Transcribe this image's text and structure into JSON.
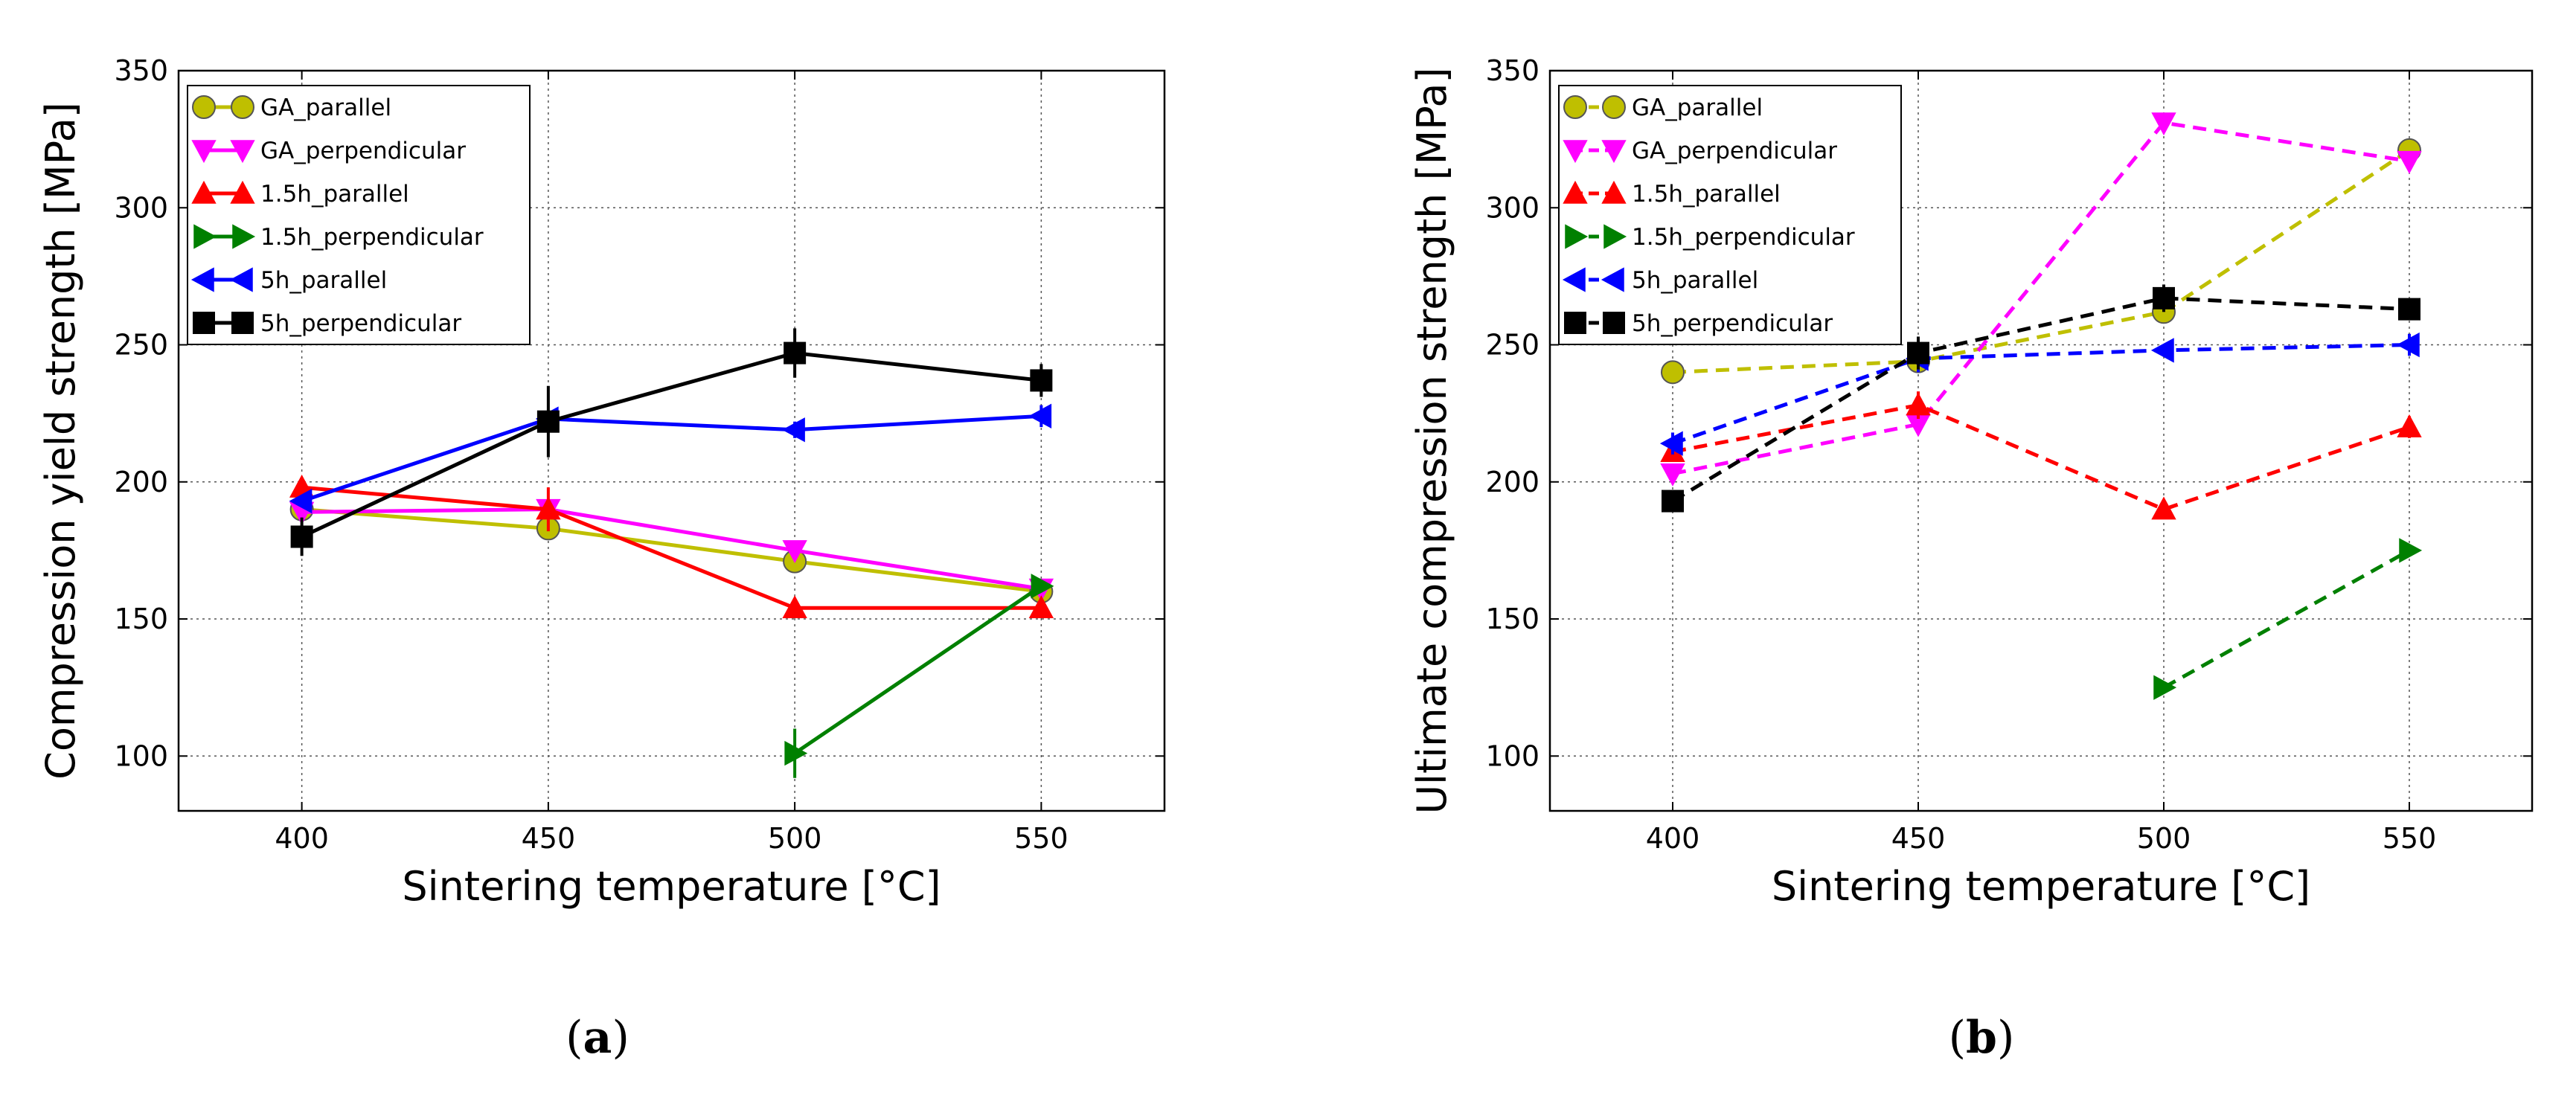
{
  "chart_data": [
    {
      "type": "line",
      "panel_label": "a",
      "title": "",
      "xlabel": "Sintering temperature [°C]",
      "ylabel": "Compression yield strength [MPa]",
      "xlim": [
        375,
        575
      ],
      "ylim": [
        80,
        350
      ],
      "xticks": [
        400,
        450,
        500,
        550
      ],
      "yticks": [
        100,
        150,
        200,
        250,
        300,
        350
      ],
      "grid": true,
      "line_style": "solid",
      "legend_position": "top-left",
      "series": [
        {
          "name": "GA_parallel",
          "color": "#bfbf00",
          "marker": "circle",
          "x": [
            400,
            450,
            500,
            550
          ],
          "y": [
            190,
            183,
            171,
            160
          ],
          "err": [
            0,
            0,
            0,
            0
          ]
        },
        {
          "name": "GA_perpendicular",
          "color": "#ff00ff",
          "marker": "triangle-down",
          "x": [
            400,
            450,
            500,
            550
          ],
          "y": [
            189,
            190,
            175,
            161
          ],
          "err": [
            0,
            0,
            0,
            0
          ]
        },
        {
          "name": "1.5h_parallel",
          "color": "#ff0000",
          "marker": "triangle-up",
          "x": [
            400,
            450,
            500,
            550
          ],
          "y": [
            198,
            190,
            154,
            154
          ],
          "err": [
            0,
            8,
            0,
            0
          ]
        },
        {
          "name": "1.5h_perpendicular",
          "color": "#008000",
          "marker": "triangle-right",
          "x": [
            500,
            550
          ],
          "y": [
            101,
            162
          ],
          "err": [
            9,
            0
          ]
        },
        {
          "name": "5h_parallel",
          "color": "#0000ff",
          "marker": "triangle-left",
          "x": [
            400,
            450,
            500,
            550
          ],
          "y": [
            193,
            223,
            219,
            224
          ],
          "err": [
            0,
            0,
            3,
            4
          ]
        },
        {
          "name": "5h_perpendicular",
          "color": "#000000",
          "marker": "square",
          "x": [
            400,
            450,
            500,
            550
          ],
          "y": [
            180,
            222,
            247,
            237
          ],
          "err": [
            7,
            13,
            9,
            6
          ]
        }
      ]
    },
    {
      "type": "line",
      "panel_label": "b",
      "title": "",
      "xlabel": "Sintering temperature [°C]",
      "ylabel": "Ultimate compression strength [MPa]",
      "xlim": [
        375,
        575
      ],
      "ylim": [
        80,
        350
      ],
      "xticks": [
        400,
        450,
        500,
        550
      ],
      "yticks": [
        100,
        150,
        200,
        250,
        300,
        350
      ],
      "grid": true,
      "line_style": "dashed",
      "legend_position": "top-left",
      "series": [
        {
          "name": "GA_parallel",
          "color": "#bfbf00",
          "marker": "circle",
          "x": [
            400,
            450,
            500,
            550
          ],
          "y": [
            240,
            244,
            262,
            321
          ],
          "err": [
            0,
            0,
            0,
            0
          ]
        },
        {
          "name": "GA_perpendicular",
          "color": "#ff00ff",
          "marker": "triangle-down",
          "x": [
            400,
            450,
            500,
            550
          ],
          "y": [
            203,
            221,
            331,
            317
          ],
          "err": [
            0,
            0,
            0,
            0
          ]
        },
        {
          "name": "1.5h_parallel",
          "color": "#ff0000",
          "marker": "triangle-up",
          "x": [
            400,
            450,
            500,
            550
          ],
          "y": [
            211,
            228,
            190,
            220
          ],
          "err": [
            0,
            5,
            0,
            4
          ]
        },
        {
          "name": "1.5h_perpendicular",
          "color": "#008000",
          "marker": "triangle-right",
          "x": [
            500,
            550
          ],
          "y": [
            125,
            175
          ],
          "err": [
            0,
            0
          ]
        },
        {
          "name": "5h_parallel",
          "color": "#0000ff",
          "marker": "triangle-left",
          "x": [
            400,
            450,
            500,
            550
          ],
          "y": [
            214,
            245,
            248,
            250
          ],
          "err": [
            4,
            5,
            0,
            4
          ]
        },
        {
          "name": "5h_perpendicular",
          "color": "#000000",
          "marker": "square",
          "x": [
            400,
            450,
            500,
            550
          ],
          "y": [
            193,
            247,
            267,
            263
          ],
          "err": [
            0,
            6,
            5,
            0
          ]
        }
      ]
    }
  ]
}
